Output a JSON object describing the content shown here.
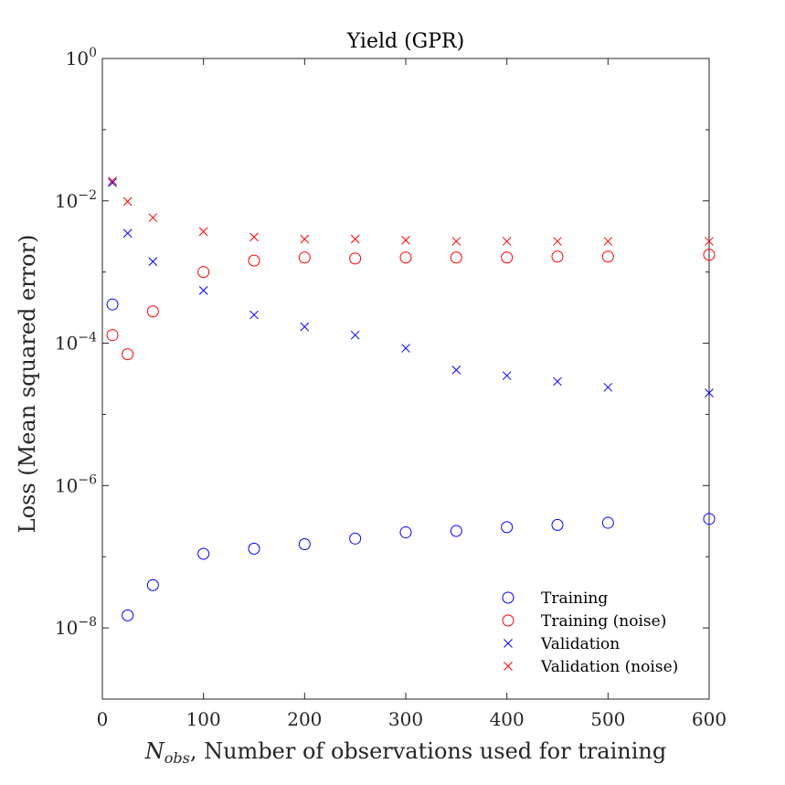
{
  "chart_data": {
    "type": "scatter",
    "title": "Yield (GPR)",
    "xlabel_main": "N",
    "xlabel_sub": "obs",
    "xlabel_rest": ", Number of observations used for training",
    "ylabel": "Loss (Mean squared error)",
    "xlim": [
      0,
      600
    ],
    "ylim": [
      1e-09,
      1
    ],
    "yscale": "log",
    "xticks": [
      0,
      100,
      200,
      300,
      400,
      500,
      600
    ],
    "xtick_labels": [
      "0",
      "100",
      "200",
      "300",
      "400",
      "500",
      "600"
    ],
    "yticks": [
      1e-08,
      1e-06,
      0.0001,
      0.01,
      1
    ],
    "ytick_base": [
      "10",
      "10",
      "10",
      "10",
      "10"
    ],
    "ytick_exp": [
      "−8",
      "−6",
      "−4",
      "−2",
      "0"
    ],
    "legend_position": "bottom-right",
    "series": [
      {
        "name": "Training",
        "marker": "circle",
        "color": "#0000ff",
        "x": [
          10,
          25,
          50,
          100,
          150,
          200,
          250,
          300,
          350,
          400,
          450,
          500,
          600
        ],
        "y": [
          0.00035,
          1.5e-08,
          4e-08,
          1.1e-07,
          1.3e-07,
          1.5e-07,
          1.8e-07,
          2.2e-07,
          2.3e-07,
          2.6e-07,
          2.8e-07,
          3e-07,
          3.4e-07
        ]
      },
      {
        "name": "Training (noise)",
        "marker": "circle",
        "color": "#ff0000",
        "x": [
          10,
          25,
          50,
          100,
          150,
          200,
          250,
          300,
          350,
          400,
          450,
          500,
          600
        ],
        "y": [
          0.00013,
          7e-05,
          0.00028,
          0.001,
          0.00145,
          0.0016,
          0.00155,
          0.0016,
          0.0016,
          0.0016,
          0.00165,
          0.00165,
          0.00175
        ]
      },
      {
        "name": "Validation",
        "marker": "x",
        "color": "#0000ff",
        "x": [
          10,
          25,
          50,
          100,
          150,
          200,
          250,
          300,
          350,
          400,
          450,
          500,
          600
        ],
        "y": [
          0.018,
          0.0035,
          0.0014,
          0.00055,
          0.00025,
          0.00017,
          0.00013,
          8.5e-05,
          4.2e-05,
          3.5e-05,
          2.9e-05,
          2.4e-05,
          2e-05
        ]
      },
      {
        "name": "Validation (noise)",
        "marker": "x",
        "color": "#ff0000",
        "x": [
          10,
          25,
          50,
          100,
          150,
          200,
          250,
          300,
          350,
          400,
          450,
          500,
          600
        ],
        "y": [
          0.019,
          0.0098,
          0.0058,
          0.0037,
          0.0031,
          0.0029,
          0.0029,
          0.0028,
          0.0027,
          0.0027,
          0.0027,
          0.0027,
          0.0027
        ]
      }
    ]
  }
}
